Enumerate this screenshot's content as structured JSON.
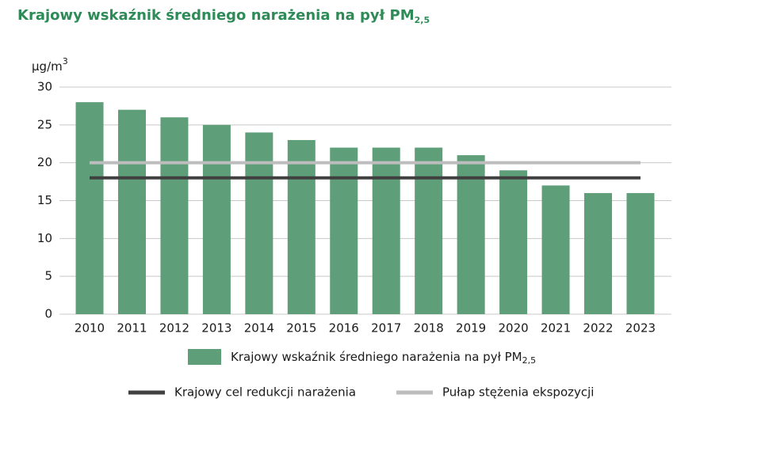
{
  "chart_data": {
    "type": "bar",
    "title": "Krajowy wskaźnik średniego narażenia na pył PM",
    "title_subscript": "2,5",
    "y_unit": "µg/m",
    "y_unit_superscript": "3",
    "categories": [
      "2010",
      "2011",
      "2012",
      "2013",
      "2014",
      "2015",
      "2016",
      "2017",
      "2018",
      "2019",
      "2020",
      "2021",
      "2022",
      "2023"
    ],
    "ylim": [
      0,
      30
    ],
    "yticks": [
      0,
      5,
      10,
      15,
      20,
      25,
      30
    ],
    "grid": true,
    "series": [
      {
        "type": "bar",
        "name": "Krajowy wskaźnik średniego narażenia na pył PM",
        "name_subscript": "2,5",
        "color": "#5e9e78",
        "values": [
          28,
          27,
          26,
          25,
          24,
          23,
          22,
          22,
          22,
          21,
          19,
          17,
          16,
          16
        ]
      },
      {
        "type": "line",
        "name": "Krajowy cel redukcji narażenia",
        "color": "#404040",
        "values": [
          18,
          18,
          18,
          18,
          18,
          18,
          18,
          18,
          18,
          18,
          18,
          18,
          18,
          18
        ]
      },
      {
        "type": "line",
        "name": "Pułap stężenia ekspozycji",
        "color": "#bdbdbd",
        "values": [
          20,
          20,
          20,
          20,
          20,
          20,
          20,
          20,
          20,
          20,
          20,
          20,
          20,
          20
        ]
      }
    ]
  }
}
